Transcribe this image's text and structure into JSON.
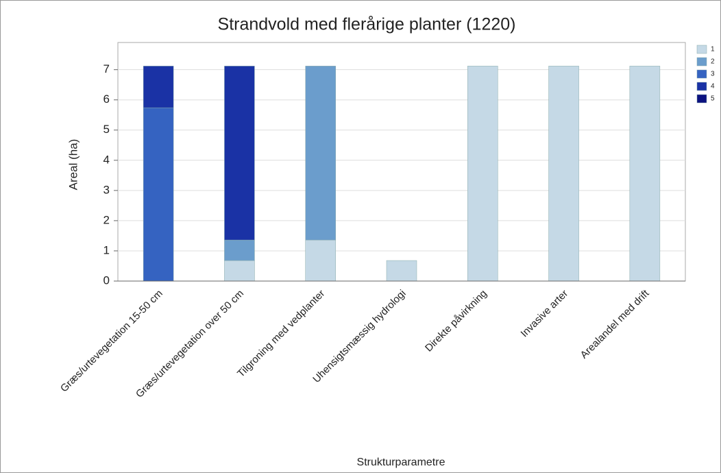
{
  "chart_data": {
    "type": "bar",
    "stacked": true,
    "title": "Strandvold med flerårige planter (1220)",
    "x_label": "Strukturparametre",
    "y_label": "Areal (ha)",
    "categories": [
      "Græs/urtevegetation 15-50 cm",
      "Græs/urtevegetation over 50 cm",
      "Tilgroning med vedplanter",
      "Uhensigtsmæssig hydrologi",
      "Direkte påvirkning",
      "Invasive arter",
      "Arealandel med drift"
    ],
    "series": [
      {
        "name": "1",
        "color": "#c5d9e6",
        "values": [
          0,
          0.68,
          1.36,
          0.68,
          7.12,
          7.12,
          7.12
        ]
      },
      {
        "name": "2",
        "color": "#6b9dcc",
        "values": [
          0,
          0.68,
          5.76,
          0,
          0,
          0,
          0
        ]
      },
      {
        "name": "3",
        "color": "#3563c1",
        "values": [
          5.74,
          0,
          0,
          0,
          0,
          0,
          0
        ]
      },
      {
        "name": "4",
        "color": "#1a32a5",
        "values": [
          1.38,
          5.76,
          0,
          0,
          0,
          0,
          0
        ]
      },
      {
        "name": "5",
        "color": "#0c1280",
        "values": [
          0,
          0,
          0,
          0,
          0,
          0,
          0
        ]
      }
    ],
    "ylim": [
      0,
      7.9
    ],
    "yticks": [
      0,
      1,
      2,
      3,
      4,
      5,
      6,
      7
    ],
    "grid": true,
    "legend": "upper right"
  }
}
